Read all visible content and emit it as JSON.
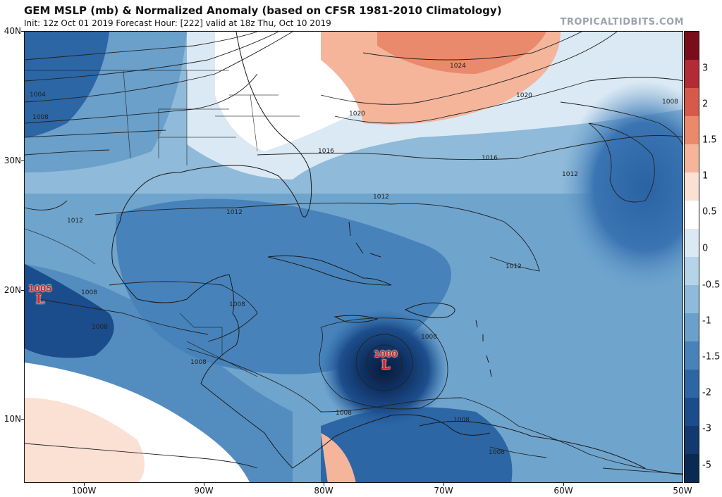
{
  "header": {
    "title": "GEM MSLP (mb) & Normalized Anomaly (based on CFSR 1981-2010 Climatology)",
    "subtitle": "Init: 12z Oct 01 2019   Forecast Hour: [222]   valid at 18z Thu, Oct 10 2019",
    "site": "TROPICALTIDBITS.COM"
  },
  "axes": {
    "lat_labels": [
      "40N",
      "30N",
      "20N",
      "10N"
    ],
    "lon_labels": [
      "100W",
      "90W",
      "80W",
      "70W",
      "60W",
      "50W"
    ]
  },
  "colorbar": {
    "labels": [
      "3",
      "2",
      "1.5",
      "1",
      "0.5",
      "0",
      "-0.5",
      "-1",
      "-1.5",
      "-2",
      "-3",
      "-5"
    ],
    "colors": [
      "#7a0d1c",
      "#b22b35",
      "#d65a4b",
      "#ea8a6c",
      "#f4b59b",
      "#fbe0d4",
      "#ffffff",
      "#dbe9f4",
      "#b6d4e9",
      "#8fbad9",
      "#6aa0ca",
      "#4783ba",
      "#2c66a5",
      "#1b4c8b",
      "#123a6f",
      "#0b2a52"
    ]
  },
  "isobars": {
    "labels": [
      "1024",
      "1020",
      "1020",
      "1016",
      "1016",
      "1012",
      "1012",
      "1012",
      "1012",
      "1012",
      "1008",
      "1008",
      "1008",
      "1008",
      "1008",
      "1008",
      "1008",
      "1008",
      "1008",
      "1004",
      "1008"
    ]
  },
  "lows": [
    {
      "pressure": "1005",
      "symbol": "L"
    },
    {
      "pressure": "1000",
      "symbol": "L"
    }
  ]
}
